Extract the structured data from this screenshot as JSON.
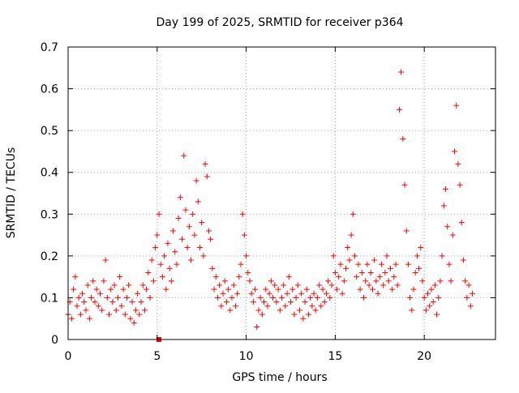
{
  "chart_data": {
    "type": "scatter",
    "title": "Day 199 of 2025, SRMTID for receiver p364",
    "xlabel": "GPS time / hours",
    "ylabel": "SRMTID / TECUs",
    "xlim": [
      0,
      24
    ],
    "ylim": [
      0,
      0.7
    ],
    "grid": true,
    "marker": "+",
    "x_ticks": [
      {
        "value": 0,
        "label": "0"
      },
      {
        "value": 5,
        "label": "5"
      },
      {
        "value": 10,
        "label": "10"
      },
      {
        "value": 15,
        "label": "15"
      },
      {
        "value": 20,
        "label": "20"
      }
    ],
    "y_ticks": [
      {
        "value": 0,
        "label": "0"
      },
      {
        "value": 0.1,
        "label": "0.1"
      },
      {
        "value": 0.2,
        "label": "0.2"
      },
      {
        "value": 0.3,
        "label": "0.3"
      },
      {
        "value": 0.4,
        "label": "0.4"
      },
      {
        "value": 0.5,
        "label": "0.5"
      },
      {
        "value": 0.6,
        "label": "0.6"
      },
      {
        "value": 0.7,
        "label": "0.7"
      }
    ],
    "series": [
      {
        "name": "SRMTID",
        "color": "#ff0000",
        "points": [
          [
            0.0,
            0.06
          ],
          [
            0.1,
            0.09
          ],
          [
            0.2,
            0.05
          ],
          [
            0.3,
            0.12
          ],
          [
            0.4,
            0.15
          ],
          [
            0.5,
            0.08
          ],
          [
            0.6,
            0.1
          ],
          [
            0.7,
            0.06
          ],
          [
            0.8,
            0.11
          ],
          [
            0.9,
            0.09
          ],
          [
            1.0,
            0.07
          ],
          [
            1.1,
            0.13
          ],
          [
            1.2,
            0.05
          ],
          [
            1.3,
            0.1
          ],
          [
            1.4,
            0.14
          ],
          [
            1.5,
            0.09
          ],
          [
            1.6,
            0.12
          ],
          [
            1.7,
            0.08
          ],
          [
            1.8,
            0.11
          ],
          [
            1.9,
            0.07
          ],
          [
            2.0,
            0.14
          ],
          [
            2.1,
            0.19
          ],
          [
            2.2,
            0.1
          ],
          [
            2.3,
            0.06
          ],
          [
            2.4,
            0.12
          ],
          [
            2.5,
            0.09
          ],
          [
            2.6,
            0.13
          ],
          [
            2.7,
            0.07
          ],
          [
            2.8,
            0.1
          ],
          [
            2.9,
            0.15
          ],
          [
            3.0,
            0.08
          ],
          [
            3.1,
            0.12
          ],
          [
            3.2,
            0.06
          ],
          [
            3.3,
            0.1
          ],
          [
            3.4,
            0.13
          ],
          [
            3.5,
            0.05
          ],
          [
            3.6,
            0.09
          ],
          [
            3.7,
            0.04
          ],
          [
            3.8,
            0.07
          ],
          [
            3.9,
            0.11
          ],
          [
            4.0,
            0.06
          ],
          [
            4.1,
            0.09
          ],
          [
            4.2,
            0.13
          ],
          [
            4.3,
            0.07
          ],
          [
            4.4,
            0.12
          ],
          [
            4.5,
            0.16
          ],
          [
            4.6,
            0.1
          ],
          [
            4.7,
            0.19
          ],
          [
            4.8,
            0.14
          ],
          [
            4.9,
            0.22
          ],
          [
            5.0,
            0.25
          ],
          [
            5.1,
            0.3
          ],
          [
            5.2,
            0.18
          ],
          [
            5.3,
            0.15
          ],
          [
            5.4,
            0.2
          ],
          [
            5.5,
            0.12
          ],
          [
            5.6,
            0.23
          ],
          [
            5.7,
            0.17
          ],
          [
            5.8,
            0.14
          ],
          [
            5.9,
            0.26
          ],
          [
            6.0,
            0.21
          ],
          [
            6.1,
            0.18
          ],
          [
            6.2,
            0.29
          ],
          [
            6.3,
            0.34
          ],
          [
            6.4,
            0.24
          ],
          [
            6.5,
            0.44
          ],
          [
            6.6,
            0.31
          ],
          [
            6.7,
            0.22
          ],
          [
            6.8,
            0.27
          ],
          [
            6.9,
            0.19
          ],
          [
            7.0,
            0.3
          ],
          [
            7.1,
            0.25
          ],
          [
            7.2,
            0.38
          ],
          [
            7.3,
            0.33
          ],
          [
            7.4,
            0.22
          ],
          [
            7.5,
            0.28
          ],
          [
            7.6,
            0.2
          ],
          [
            7.7,
            0.42
          ],
          [
            7.8,
            0.39
          ],
          [
            7.9,
            0.26
          ],
          [
            8.0,
            0.24
          ],
          [
            8.1,
            0.17
          ],
          [
            8.2,
            0.12
          ],
          [
            8.3,
            0.15
          ],
          [
            8.4,
            0.1
          ],
          [
            8.5,
            0.13
          ],
          [
            8.6,
            0.08
          ],
          [
            8.7,
            0.11
          ],
          [
            8.8,
            0.14
          ],
          [
            8.9,
            0.09
          ],
          [
            9.0,
            0.12
          ],
          [
            9.1,
            0.07
          ],
          [
            9.2,
            0.1
          ],
          [
            9.3,
            0.13
          ],
          [
            9.4,
            0.08
          ],
          [
            9.5,
            0.11
          ],
          [
            9.6,
            0.15
          ],
          [
            9.7,
            0.18
          ],
          [
            9.8,
            0.3
          ],
          [
            9.9,
            0.25
          ],
          [
            10.0,
            0.2
          ],
          [
            10.1,
            0.16
          ],
          [
            10.2,
            0.14
          ],
          [
            10.3,
            0.11
          ],
          [
            10.4,
            0.09
          ],
          [
            10.5,
            0.12
          ],
          [
            10.6,
            0.03
          ],
          [
            10.7,
            0.07
          ],
          [
            10.8,
            0.1
          ],
          [
            10.9,
            0.06
          ],
          [
            11.0,
            0.09
          ],
          [
            11.1,
            0.12
          ],
          [
            11.2,
            0.08
          ],
          [
            11.3,
            0.11
          ],
          [
            11.4,
            0.14
          ],
          [
            11.5,
            0.1
          ],
          [
            11.6,
            0.13
          ],
          [
            11.7,
            0.09
          ],
          [
            11.8,
            0.12
          ],
          [
            11.9,
            0.07
          ],
          [
            12.0,
            0.1
          ],
          [
            12.1,
            0.13
          ],
          [
            12.2,
            0.08
          ],
          [
            12.3,
            0.11
          ],
          [
            12.4,
            0.15
          ],
          [
            12.5,
            0.09
          ],
          [
            12.6,
            0.12
          ],
          [
            12.7,
            0.06
          ],
          [
            12.8,
            0.1
          ],
          [
            12.9,
            0.13
          ],
          [
            13.0,
            0.07
          ],
          [
            13.1,
            0.11
          ],
          [
            13.2,
            0.05
          ],
          [
            13.3,
            0.09
          ],
          [
            13.4,
            0.12
          ],
          [
            13.5,
            0.06
          ],
          [
            13.6,
            0.1
          ],
          [
            13.7,
            0.08
          ],
          [
            13.8,
            0.11
          ],
          [
            13.9,
            0.07
          ],
          [
            14.0,
            0.1
          ],
          [
            14.1,
            0.13
          ],
          [
            14.2,
            0.08
          ],
          [
            14.3,
            0.12
          ],
          [
            14.4,
            0.09
          ],
          [
            14.5,
            0.11
          ],
          [
            14.6,
            0.14
          ],
          [
            14.7,
            0.1
          ],
          [
            14.8,
            0.13
          ],
          [
            14.9,
            0.2
          ],
          [
            15.0,
            0.16
          ],
          [
            15.1,
            0.12
          ],
          [
            15.2,
            0.15
          ],
          [
            15.3,
            0.18
          ],
          [
            15.4,
            0.11
          ],
          [
            15.5,
            0.14
          ],
          [
            15.6,
            0.17
          ],
          [
            15.7,
            0.22
          ],
          [
            15.8,
            0.19
          ],
          [
            15.9,
            0.25
          ],
          [
            16.0,
            0.3
          ],
          [
            16.1,
            0.2
          ],
          [
            16.2,
            0.15
          ],
          [
            16.3,
            0.18
          ],
          [
            16.4,
            0.12
          ],
          [
            16.5,
            0.16
          ],
          [
            16.6,
            0.1
          ],
          [
            16.7,
            0.14
          ],
          [
            16.8,
            0.18
          ],
          [
            16.9,
            0.13
          ],
          [
            17.0,
            0.16
          ],
          [
            17.1,
            0.12
          ],
          [
            17.2,
            0.19
          ],
          [
            17.3,
            0.14
          ],
          [
            17.4,
            0.11
          ],
          [
            17.5,
            0.15
          ],
          [
            17.6,
            0.18
          ],
          [
            17.7,
            0.13
          ],
          [
            17.8,
            0.16
          ],
          [
            17.9,
            0.2
          ],
          [
            18.0,
            0.14
          ],
          [
            18.1,
            0.17
          ],
          [
            18.2,
            0.12
          ],
          [
            18.3,
            0.15
          ],
          [
            18.4,
            0.18
          ],
          [
            18.5,
            0.13
          ],
          [
            18.6,
            0.55
          ],
          [
            18.7,
            0.64
          ],
          [
            18.8,
            0.48
          ],
          [
            18.9,
            0.37
          ],
          [
            19.0,
            0.26
          ],
          [
            19.1,
            0.18
          ],
          [
            19.2,
            0.1
          ],
          [
            19.3,
            0.07
          ],
          [
            19.4,
            0.12
          ],
          [
            19.5,
            0.16
          ],
          [
            19.6,
            0.2
          ],
          [
            19.7,
            0.17
          ],
          [
            19.8,
            0.22
          ],
          [
            19.9,
            0.14
          ],
          [
            20.0,
            0.1
          ],
          [
            20.1,
            0.07
          ],
          [
            20.2,
            0.11
          ],
          [
            20.3,
            0.08
          ],
          [
            20.4,
            0.12
          ],
          [
            20.5,
            0.09
          ],
          [
            20.6,
            0.13
          ],
          [
            20.7,
            0.06
          ],
          [
            20.8,
            0.1
          ],
          [
            20.9,
            0.14
          ],
          [
            21.0,
            0.2
          ],
          [
            21.1,
            0.32
          ],
          [
            21.2,
            0.36
          ],
          [
            21.3,
            0.27
          ],
          [
            21.4,
            0.18
          ],
          [
            21.5,
            0.14
          ],
          [
            21.6,
            0.25
          ],
          [
            21.7,
            0.45
          ],
          [
            21.8,
            0.56
          ],
          [
            21.9,
            0.42
          ],
          [
            22.0,
            0.37
          ],
          [
            22.1,
            0.28
          ],
          [
            22.2,
            0.19
          ],
          [
            22.3,
            0.14
          ],
          [
            22.4,
            0.1
          ],
          [
            22.5,
            0.13
          ],
          [
            22.6,
            0.08
          ],
          [
            22.7,
            0.11
          ]
        ],
        "outlier_square": [
          5.1,
          0.0
        ]
      }
    ]
  }
}
